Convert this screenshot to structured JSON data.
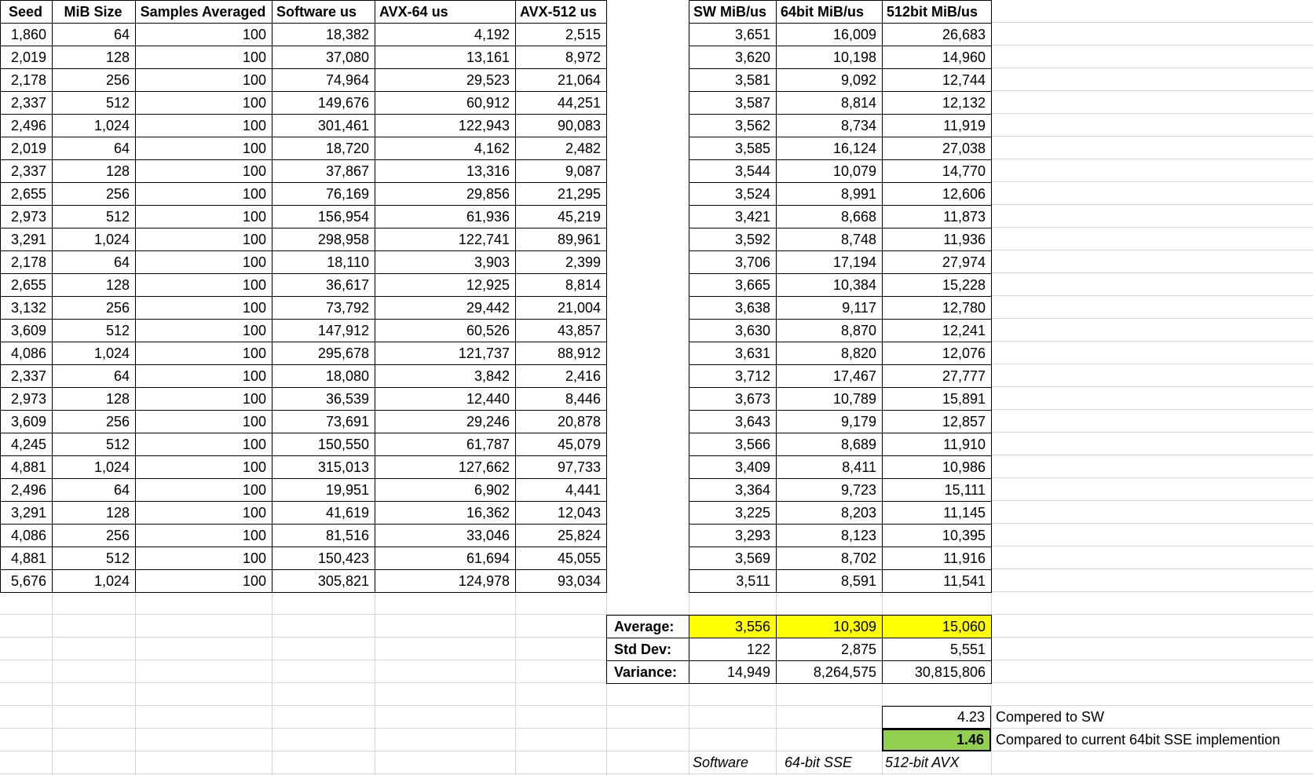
{
  "table": {
    "headers": [
      "Seed",
      "MiB Size",
      "Samples Averaged",
      "Software us",
      "AVX-64 us",
      "AVX-512 us",
      "SW MiB/us",
      "64bit MiB/us",
      "512bit MiB/us"
    ],
    "rows": [
      [
        "1,860",
        "64",
        "100",
        "18,382",
        "4,192",
        "2,515",
        "3,651",
        "16,009",
        "26,683"
      ],
      [
        "2,019",
        "128",
        "100",
        "37,080",
        "13,161",
        "8,972",
        "3,620",
        "10,198",
        "14,960"
      ],
      [
        "2,178",
        "256",
        "100",
        "74,964",
        "29,523",
        "21,064",
        "3,581",
        "9,092",
        "12,744"
      ],
      [
        "2,337",
        "512",
        "100",
        "149,676",
        "60,912",
        "44,251",
        "3,587",
        "8,814",
        "12,132"
      ],
      [
        "2,496",
        "1,024",
        "100",
        "301,461",
        "122,943",
        "90,083",
        "3,562",
        "8,734",
        "11,919"
      ],
      [
        "2,019",
        "64",
        "100",
        "18,720",
        "4,162",
        "2,482",
        "3,585",
        "16,124",
        "27,038"
      ],
      [
        "2,337",
        "128",
        "100",
        "37,867",
        "13,316",
        "9,087",
        "3,544",
        "10,079",
        "14,770"
      ],
      [
        "2,655",
        "256",
        "100",
        "76,169",
        "29,856",
        "21,295",
        "3,524",
        "8,991",
        "12,606"
      ],
      [
        "2,973",
        "512",
        "100",
        "156,954",
        "61,936",
        "45,219",
        "3,421",
        "8,668",
        "11,873"
      ],
      [
        "3,291",
        "1,024",
        "100",
        "298,958",
        "122,741",
        "89,961",
        "3,592",
        "8,748",
        "11,936"
      ],
      [
        "2,178",
        "64",
        "100",
        "18,110",
        "3,903",
        "2,399",
        "3,706",
        "17,194",
        "27,974"
      ],
      [
        "2,655",
        "128",
        "100",
        "36,617",
        "12,925",
        "8,814",
        "3,665",
        "10,384",
        "15,228"
      ],
      [
        "3,132",
        "256",
        "100",
        "73,792",
        "29,442",
        "21,004",
        "3,638",
        "9,117",
        "12,780"
      ],
      [
        "3,609",
        "512",
        "100",
        "147,912",
        "60,526",
        "43,857",
        "3,630",
        "8,870",
        "12,241"
      ],
      [
        "4,086",
        "1,024",
        "100",
        "295,678",
        "121,737",
        "88,912",
        "3,631",
        "8,820",
        "12,076"
      ],
      [
        "2,337",
        "64",
        "100",
        "18,080",
        "3,842",
        "2,416",
        "3,712",
        "17,467",
        "27,777"
      ],
      [
        "2,973",
        "128",
        "100",
        "36,539",
        "12,440",
        "8,446",
        "3,673",
        "10,789",
        "15,891"
      ],
      [
        "3,609",
        "256",
        "100",
        "73,691",
        "29,246",
        "20,878",
        "3,643",
        "9,179",
        "12,857"
      ],
      [
        "4,245",
        "512",
        "100",
        "150,550",
        "61,787",
        "45,079",
        "3,566",
        "8,689",
        "11,910"
      ],
      [
        "4,881",
        "1,024",
        "100",
        "315,013",
        "127,662",
        "97,733",
        "3,409",
        "8,411",
        "10,986"
      ],
      [
        "2,496",
        "64",
        "100",
        "19,951",
        "6,902",
        "4,441",
        "3,364",
        "9,723",
        "15,111"
      ],
      [
        "3,291",
        "128",
        "100",
        "41,619",
        "16,362",
        "12,043",
        "3,225",
        "8,203",
        "11,145"
      ],
      [
        "4,086",
        "256",
        "100",
        "81,516",
        "33,046",
        "25,824",
        "3,293",
        "8,123",
        "10,395"
      ],
      [
        "4,881",
        "512",
        "100",
        "150,423",
        "61,694",
        "45,055",
        "3,569",
        "8,702",
        "11,916"
      ],
      [
        "5,676",
        "1,024",
        "100",
        "305,821",
        "124,978",
        "93,034",
        "3,511",
        "8,591",
        "11,541"
      ]
    ]
  },
  "summary": {
    "rows": [
      {
        "label": "Average:",
        "sw": "3,556",
        "bit64": "10,309",
        "bit512": "15,060",
        "highlight": true
      },
      {
        "label": "Std Dev:",
        "sw": "122",
        "bit64": "2,875",
        "bit512": "5,551",
        "highlight": false
      },
      {
        "label": "Variance:",
        "sw": "14,949",
        "bit64": "8,264,575",
        "bit512": "30,815,806",
        "highlight": false
      }
    ]
  },
  "comparison": {
    "rows": [
      {
        "value": "4.23",
        "note": "Compered to SW",
        "highlight": false
      },
      {
        "value": "1.46",
        "note": "Compared to current 64bit SSE implemention",
        "highlight": true
      }
    ],
    "labels": [
      "Software",
      "64-bit SSE",
      "512-bit AVX"
    ]
  },
  "colors": {
    "highlight_yellow": "#ffff00",
    "highlight_green": "#92d050",
    "gridline": "#d6d6d6"
  }
}
